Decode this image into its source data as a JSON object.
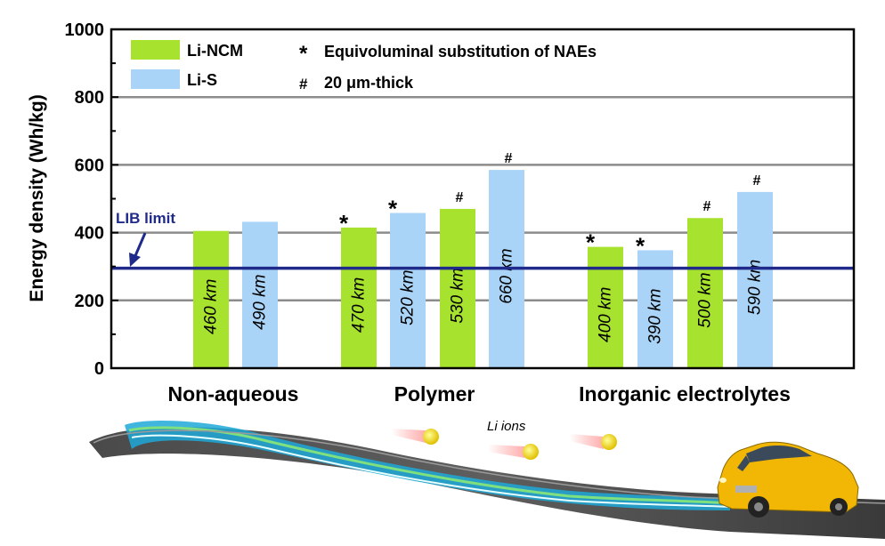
{
  "chart_data": {
    "type": "bar",
    "ylabel": "Energy density (Wh/kg)",
    "ylim": [
      0,
      1000
    ],
    "yticks": [
      0,
      200,
      400,
      600,
      800,
      1000
    ],
    "grid": "horizontal",
    "legend_position": "top-left",
    "groups": [
      "Non-aqueous",
      "Polymer",
      "Inorganic electrolytes"
    ],
    "series": [
      {
        "name": "Li-NCM",
        "color": "#a6e22e"
      },
      {
        "name": "Li-S",
        "color": "#a9d4f8"
      }
    ],
    "bars": [
      {
        "group": "Non-aqueous",
        "series": "Li-NCM",
        "value": 405,
        "label": "460 km",
        "mark": ""
      },
      {
        "group": "Non-aqueous",
        "series": "Li-S",
        "value": 432,
        "label": "490 km",
        "mark": ""
      },
      {
        "group": "Polymer",
        "series": "Li-NCM",
        "value": 415,
        "label": "470 km",
        "mark": "*"
      },
      {
        "group": "Polymer",
        "series": "Li-S",
        "value": 458,
        "label": "520 km",
        "mark": "*"
      },
      {
        "group": "Polymer",
        "series": "Li-NCM",
        "value": 470,
        "label": "530 km",
        "mark": "#"
      },
      {
        "group": "Polymer",
        "series": "Li-S",
        "value": 585,
        "label": "660 km",
        "mark": "#"
      },
      {
        "group": "Inorganic electrolytes",
        "series": "Li-NCM",
        "value": 358,
        "label": "400 km",
        "mark": "*"
      },
      {
        "group": "Inorganic electrolytes",
        "series": "Li-S",
        "value": 348,
        "label": "390 km",
        "mark": "*"
      },
      {
        "group": "Inorganic electrolytes",
        "series": "Li-NCM",
        "value": 443,
        "label": "500 km",
        "mark": "#"
      },
      {
        "group": "Inorganic electrolytes",
        "series": "Li-S",
        "value": 520,
        "label": "590 km",
        "mark": "#"
      }
    ],
    "reference_line": {
      "label": "LIB limit",
      "value": 295,
      "color": "#1f2a8a"
    },
    "notes": [
      {
        "symbol": "*",
        "text": "Equivoluminal substitution of NAEs"
      },
      {
        "symbol": "#",
        "text": "20 μm-thick"
      }
    ],
    "illustration_text": "Li ions"
  }
}
